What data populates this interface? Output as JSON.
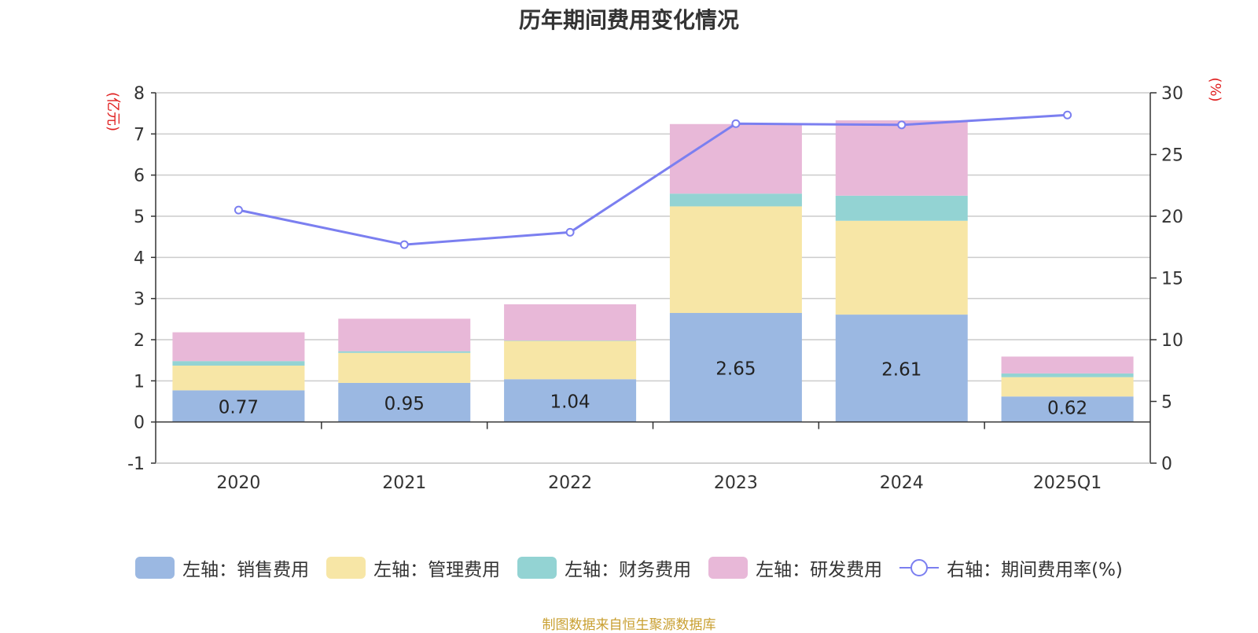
{
  "title": "历年期间费用变化情况",
  "source_text": "制图数据来自恒生聚源数据库",
  "colors": {
    "sales": "#9bb8e2",
    "admin": "#f7e6a6",
    "finance": "#93d3d3",
    "rnd": "#e8b8d8",
    "rate": "#7b7ff0",
    "axis_unit": "#e02020"
  },
  "chart_data": {
    "type": "bar",
    "stacked": true,
    "categories": [
      "2020",
      "2021",
      "2022",
      "2023",
      "2024",
      "2025Q1"
    ],
    "series": [
      {
        "name": "左轴：销售费用",
        "key": "sales",
        "axis": "left",
        "values": [
          0.77,
          0.95,
          1.04,
          2.65,
          2.61,
          0.62
        ],
        "show_labels": true
      },
      {
        "name": "左轴：管理费用",
        "key": "admin",
        "axis": "left",
        "values": [
          0.6,
          0.73,
          0.93,
          2.59,
          2.28,
          0.47
        ]
      },
      {
        "name": "左轴：财务费用",
        "key": "finance",
        "axis": "left",
        "values": [
          0.11,
          0.04,
          0.01,
          0.31,
          0.61,
          0.09
        ]
      },
      {
        "name": "左轴：研发费用",
        "key": "rnd",
        "axis": "left",
        "values": [
          0.7,
          0.79,
          0.88,
          1.69,
          1.83,
          0.41
        ]
      },
      {
        "name": "右轴：期间费用率(%)",
        "key": "rate",
        "axis": "right",
        "type": "line",
        "values": [
          20.5,
          17.7,
          18.7,
          27.5,
          27.4,
          28.2
        ]
      }
    ],
    "left_axis": {
      "unit_label": "(亿元)",
      "min": -1,
      "max": 8,
      "ticks": [
        -1,
        0,
        1,
        2,
        3,
        4,
        5,
        6,
        7,
        8
      ]
    },
    "right_axis": {
      "unit_label": "(%)",
      "min": 0,
      "max": 30,
      "ticks": [
        0,
        5,
        10,
        15,
        20,
        25,
        30
      ]
    },
    "grid": true,
    "legend_position": "bottom"
  }
}
